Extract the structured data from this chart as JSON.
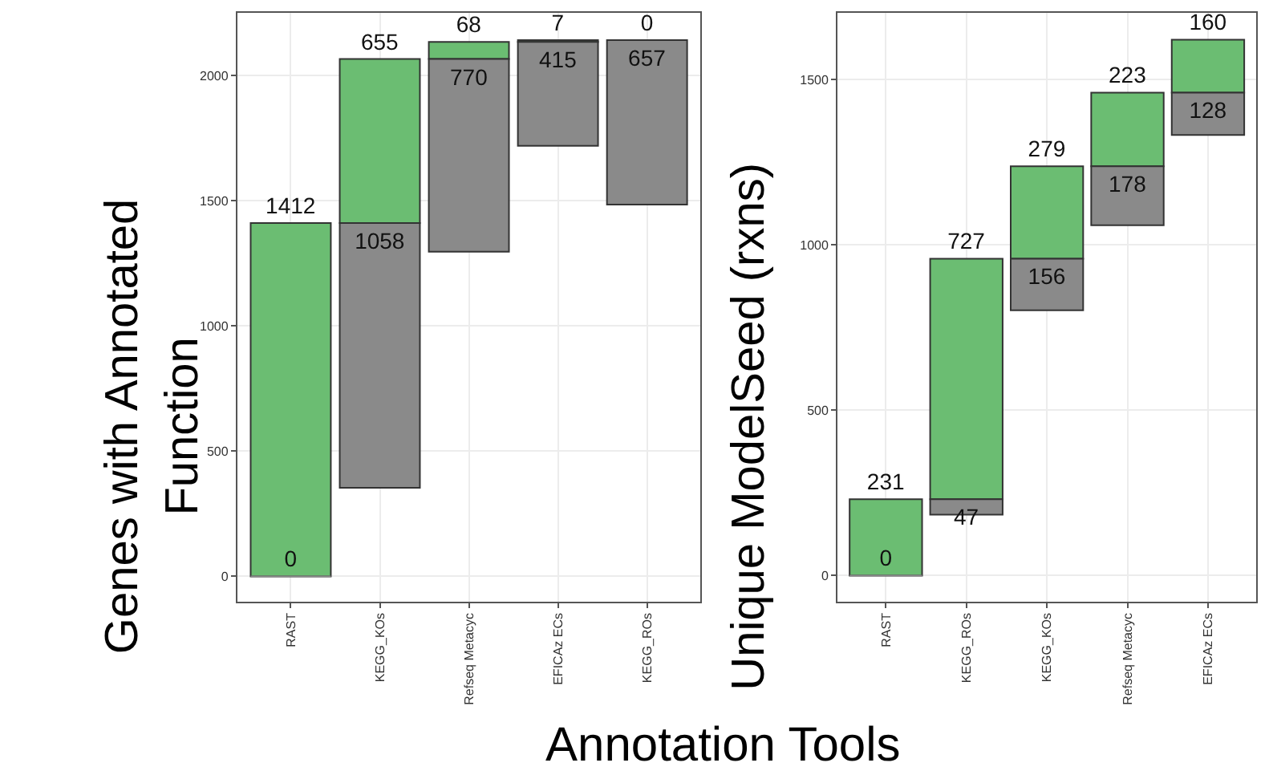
{
  "chart_data": [
    {
      "type": "bar",
      "xlabel": "Annotation Tools",
      "ylabel": "Genes with Annotated\nFunction",
      "categories": [
        "RAST",
        "KEGG_KOs",
        "Refseq Metacyc",
        "EFICAz ECs",
        "KEGG_ROs"
      ],
      "series": [
        {
          "color": "#8a8a8a",
          "base": [
            0,
            354,
            1297,
            1720,
            1485
          ],
          "values": [
            0,
            1058,
            770,
            415,
            657
          ]
        },
        {
          "color": "#6bbd72",
          "base": [
            0,
            1412,
            2067,
            2135,
            2142
          ],
          "values": [
            1412,
            655,
            68,
            7,
            0
          ]
        }
      ],
      "data_labels": true,
      "ylim": [
        -100,
        2250
      ],
      "yticks": [
        0,
        500,
        1000,
        1500,
        2000
      ],
      "grid": true
    },
    {
      "type": "bar",
      "ylabel": "Unique ModelSeed (rxns)",
      "categories": [
        "RAST",
        "KEGG_ROs",
        "KEGG_KOs",
        "Refseq Metacyc",
        "EFICAz ECs"
      ],
      "series": [
        {
          "color": "#8a8a8a",
          "base": [
            0,
            184,
            802,
            1059,
            1332
          ],
          "values": [
            0,
            47,
            156,
            178,
            128
          ]
        },
        {
          "color": "#6bbd72",
          "base": [
            0,
            231,
            958,
            1237,
            1460
          ],
          "values": [
            231,
            727,
            279,
            223,
            160
          ]
        }
      ],
      "data_labels": true,
      "ylim": [
        -78,
        1700
      ],
      "yticks": [
        0,
        500,
        1000,
        1500
      ],
      "grid": true
    }
  ]
}
